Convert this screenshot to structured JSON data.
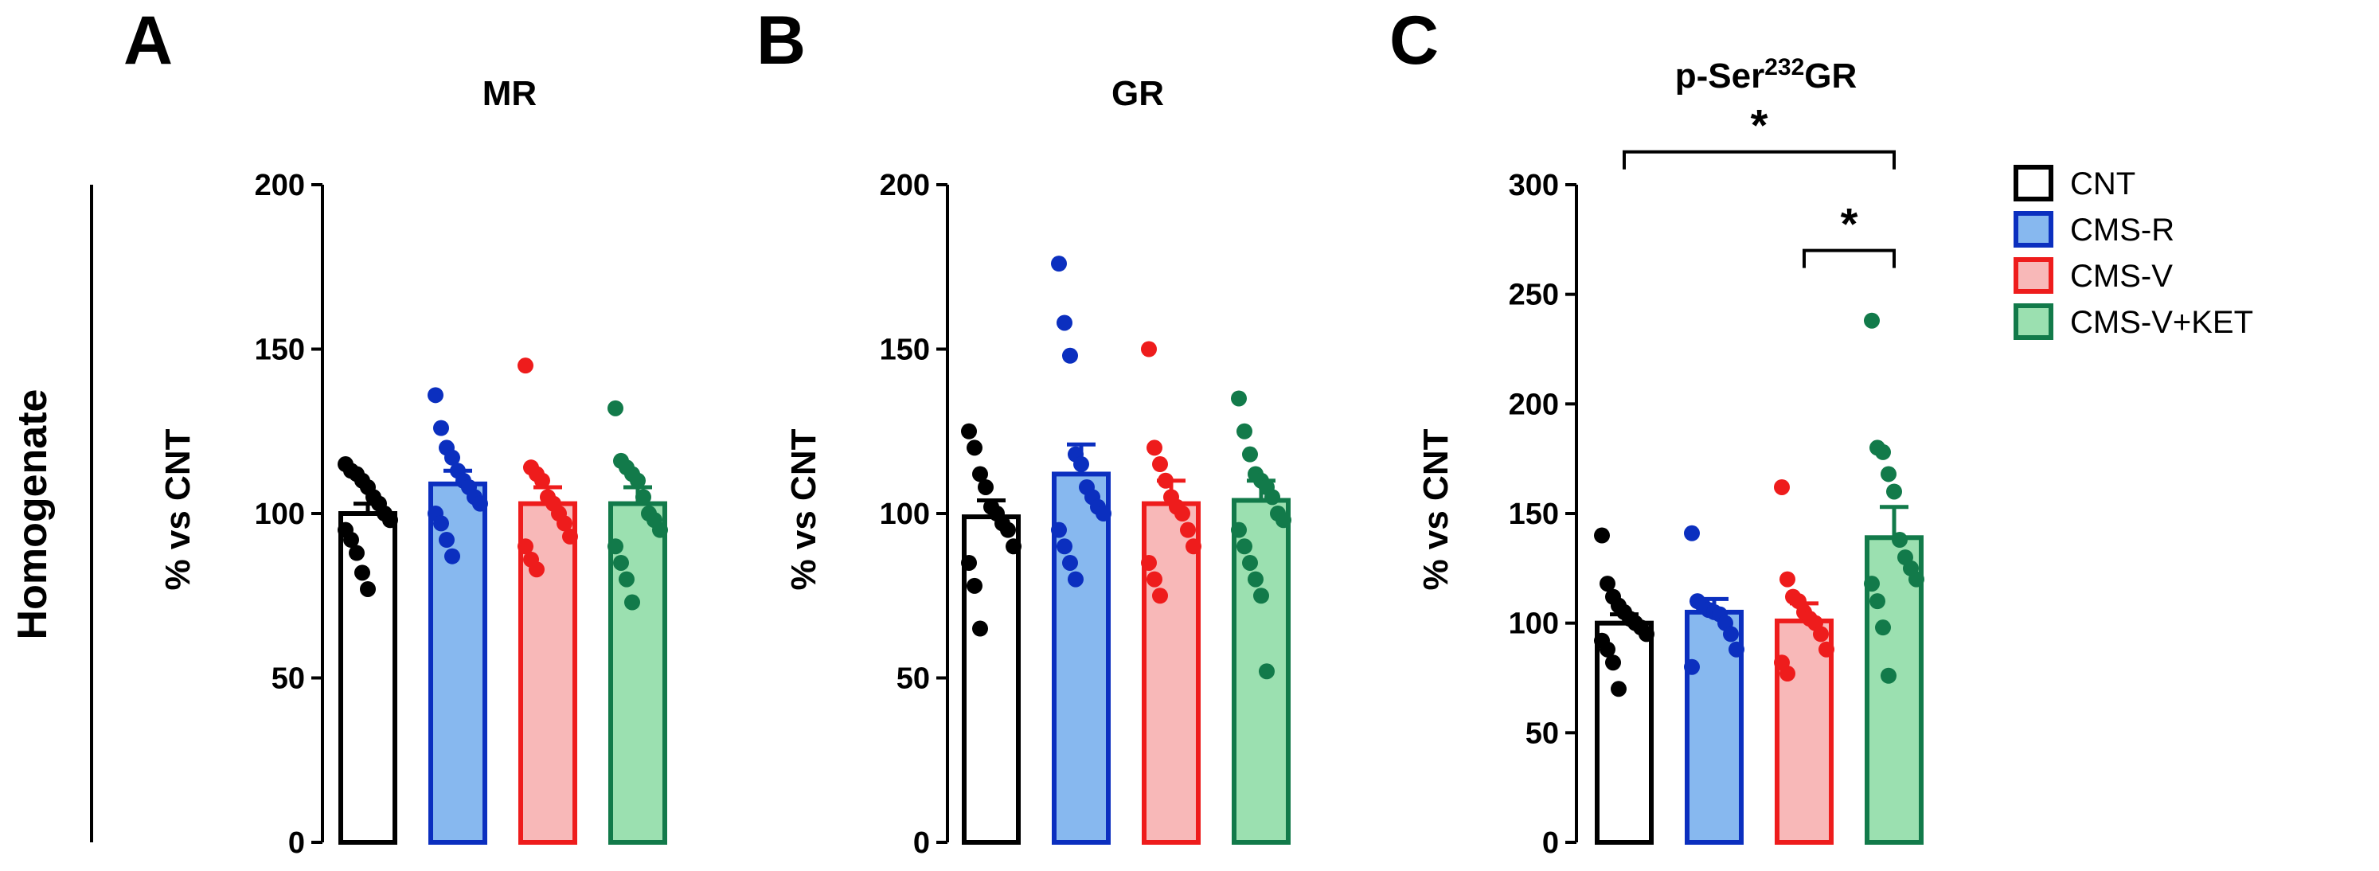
{
  "figure": {
    "row_label": "Homogenate",
    "legend": [
      {
        "label": "CNT",
        "stroke": "#000000",
        "fill": "#ffffff"
      },
      {
        "label": "CMS-R",
        "stroke": "#0b2fbf",
        "fill": "#87b8ef"
      },
      {
        "label": "CMS-V",
        "stroke": "#ee1c1c",
        "fill": "#f8b8b8"
      },
      {
        "label": "CMS-V+KET",
        "stroke": "#127a4a",
        "fill": "#9be0b0"
      }
    ],
    "colors": {
      "CNT": {
        "stroke": "#000000",
        "fill": "#ffffff",
        "dot": "#000000"
      },
      "CMS-R": {
        "stroke": "#0b2fbf",
        "fill": "#87b8ef",
        "dot": "#0b2fbf"
      },
      "CMS-V": {
        "stroke": "#ee1c1c",
        "fill": "#f8b8b8",
        "dot": "#ee1c1c"
      },
      "CMS-V+KET": {
        "stroke": "#127a4a",
        "fill": "#9be0b0",
        "dot": "#127a4a"
      }
    }
  },
  "chart_data": [
    {
      "type": "bar",
      "panel": "A",
      "title": "MR",
      "title_sup": "",
      "title_suffix": "",
      "ylabel": "% vs CNT",
      "ylim": [
        0,
        200
      ],
      "yticks": [
        0,
        50,
        100,
        150,
        200
      ],
      "categories": [
        "CNT",
        "CMS-R",
        "CMS-V",
        "CMS-V+KET"
      ],
      "values": [
        100,
        109,
        103,
        103
      ],
      "sem": [
        3,
        4,
        5,
        5
      ],
      "points": [
        [
          115,
          113,
          112,
          110,
          108,
          105,
          103,
          100,
          98,
          95,
          92,
          88,
          82,
          77
        ],
        [
          136,
          126,
          120,
          117,
          113,
          110,
          108,
          105,
          103,
          100,
          97,
          92,
          87
        ],
        [
          145,
          114,
          112,
          110,
          105,
          103,
          100,
          97,
          93,
          90,
          86,
          83
        ],
        [
          132,
          116,
          114,
          112,
          110,
          105,
          100,
          98,
          95,
          90,
          85,
          80,
          73
        ]
      ],
      "significance": []
    },
    {
      "type": "bar",
      "panel": "B",
      "title": "GR",
      "title_sup": "",
      "title_suffix": "",
      "ylabel": "% vs CNT",
      "ylim": [
        0,
        200
      ],
      "yticks": [
        0,
        50,
        100,
        150,
        200
      ],
      "categories": [
        "CNT",
        "CMS-R",
        "CMS-V",
        "CMS-V+KET"
      ],
      "values": [
        99,
        112,
        103,
        104
      ],
      "sem": [
        5,
        9,
        7,
        6
      ],
      "points": [
        [
          125,
          120,
          112,
          108,
          102,
          100,
          97,
          95,
          90,
          85,
          78,
          65
        ],
        [
          176,
          158,
          148,
          118,
          115,
          108,
          105,
          102,
          100,
          95,
          90,
          85,
          80
        ],
        [
          150,
          120,
          115,
          110,
          105,
          102,
          100,
          95,
          90,
          85,
          80,
          75
        ],
        [
          135,
          125,
          118,
          112,
          110,
          108,
          105,
          100,
          98,
          95,
          90,
          85,
          80,
          75,
          52
        ]
      ],
      "significance": []
    },
    {
      "type": "bar",
      "panel": "C",
      "title": "p-Ser",
      "title_sup": "232",
      "title_suffix": "GR",
      "ylabel": "% vs CNT",
      "ylim": [
        0,
        300
      ],
      "yticks": [
        0,
        50,
        100,
        150,
        200,
        250,
        300
      ],
      "categories": [
        "CNT",
        "CMS-R",
        "CMS-V",
        "CMS-V+KET"
      ],
      "values": [
        100,
        105,
        101,
        139
      ],
      "sem": [
        4,
        6,
        8,
        14
      ],
      "points": [
        [
          140,
          118,
          112,
          108,
          105,
          102,
          100,
          98,
          95,
          92,
          88,
          82,
          70
        ],
        [
          141,
          110,
          108,
          106,
          105,
          104,
          100,
          95,
          88,
          80
        ],
        [
          162,
          120,
          112,
          110,
          105,
          102,
          100,
          95,
          88,
          82,
          77
        ],
        [
          238,
          180,
          178,
          168,
          160,
          138,
          130,
          125,
          120,
          118,
          110,
          98,
          76
        ]
      ],
      "significance": [
        {
          "from": 0,
          "to": 3,
          "label": "*",
          "level": 315
        },
        {
          "from": 2,
          "to": 3,
          "label": "*",
          "level": 270
        }
      ]
    }
  ]
}
